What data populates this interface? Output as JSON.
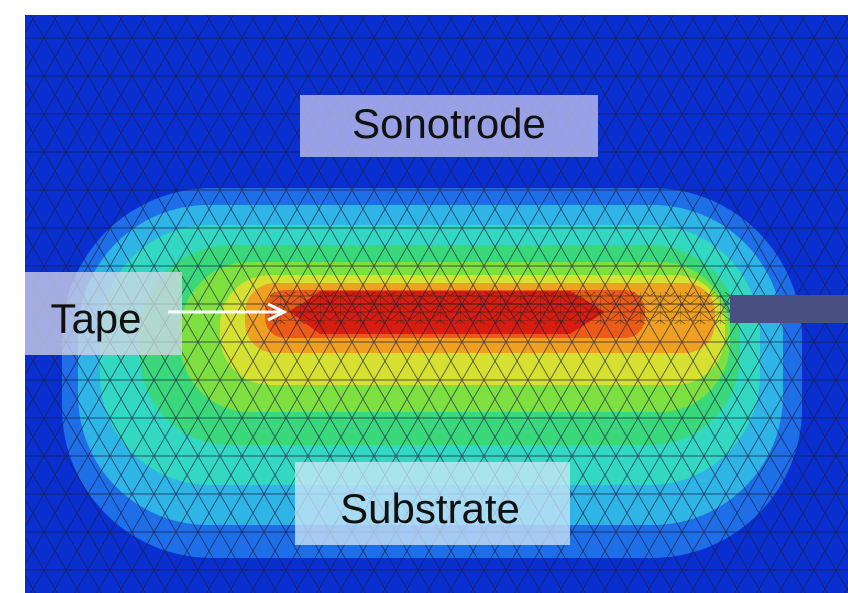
{
  "labels": {
    "sonotrode": "Sonotrode",
    "tape": "Tape",
    "substrate": "Substrate"
  }
}
